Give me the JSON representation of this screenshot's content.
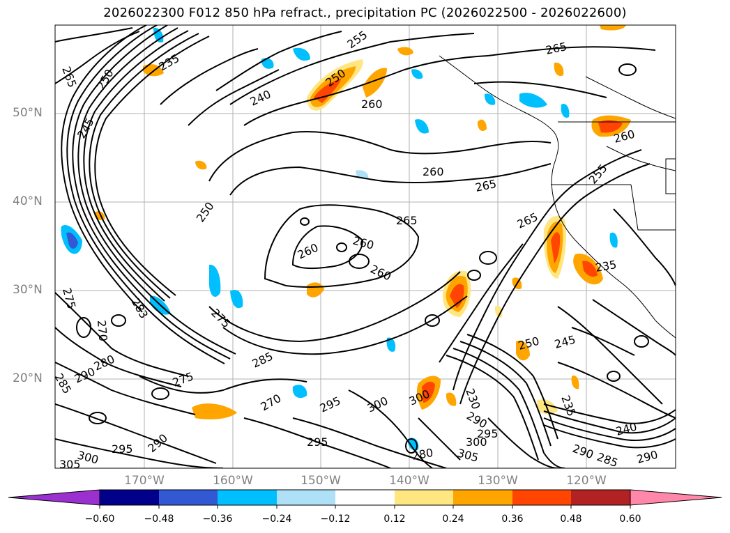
{
  "title": "2026022300 F012 850 hPa refract., precipitation PC (2026022500 - 2026022600)",
  "map": {
    "lat_labels": [
      "50°N",
      "40°N",
      "30°N",
      "20°N"
    ],
    "lon_labels": [
      "170°W",
      "160°W",
      "150°W",
      "140°W",
      "130°W",
      "120°W"
    ],
    "contour_labels": [
      "265",
      "250",
      "255",
      "250",
      "240",
      "260",
      "260",
      "265",
      "265",
      "260",
      "250",
      "265",
      "260",
      "260",
      "265",
      "235",
      "245",
      "275",
      "275",
      "283",
      "270",
      "280",
      "290",
      "285",
      "275",
      "285",
      "270",
      "295",
      "300",
      "300",
      "295",
      "300",
      "295",
      "290",
      "295",
      "305",
      "305",
      "300",
      "290",
      "280",
      "250",
      "245",
      "235",
      "240",
      "290",
      "285",
      "290",
      "260",
      "255",
      "235",
      "230"
    ]
  },
  "colorbar": {
    "ticks": [
      "−0.60",
      "−0.48",
      "−0.36",
      "−0.24",
      "−0.12",
      "0.12",
      "0.24",
      "0.36",
      "0.48",
      "0.60"
    ],
    "colors": [
      "#9b30d0",
      "#00008b",
      "#3258d4",
      "#00bfff",
      "#aee0f8",
      "#ffffff",
      "#ffe680",
      "#ffa500",
      "#ff4500",
      "#b22222",
      "#ff88aa"
    ]
  }
}
